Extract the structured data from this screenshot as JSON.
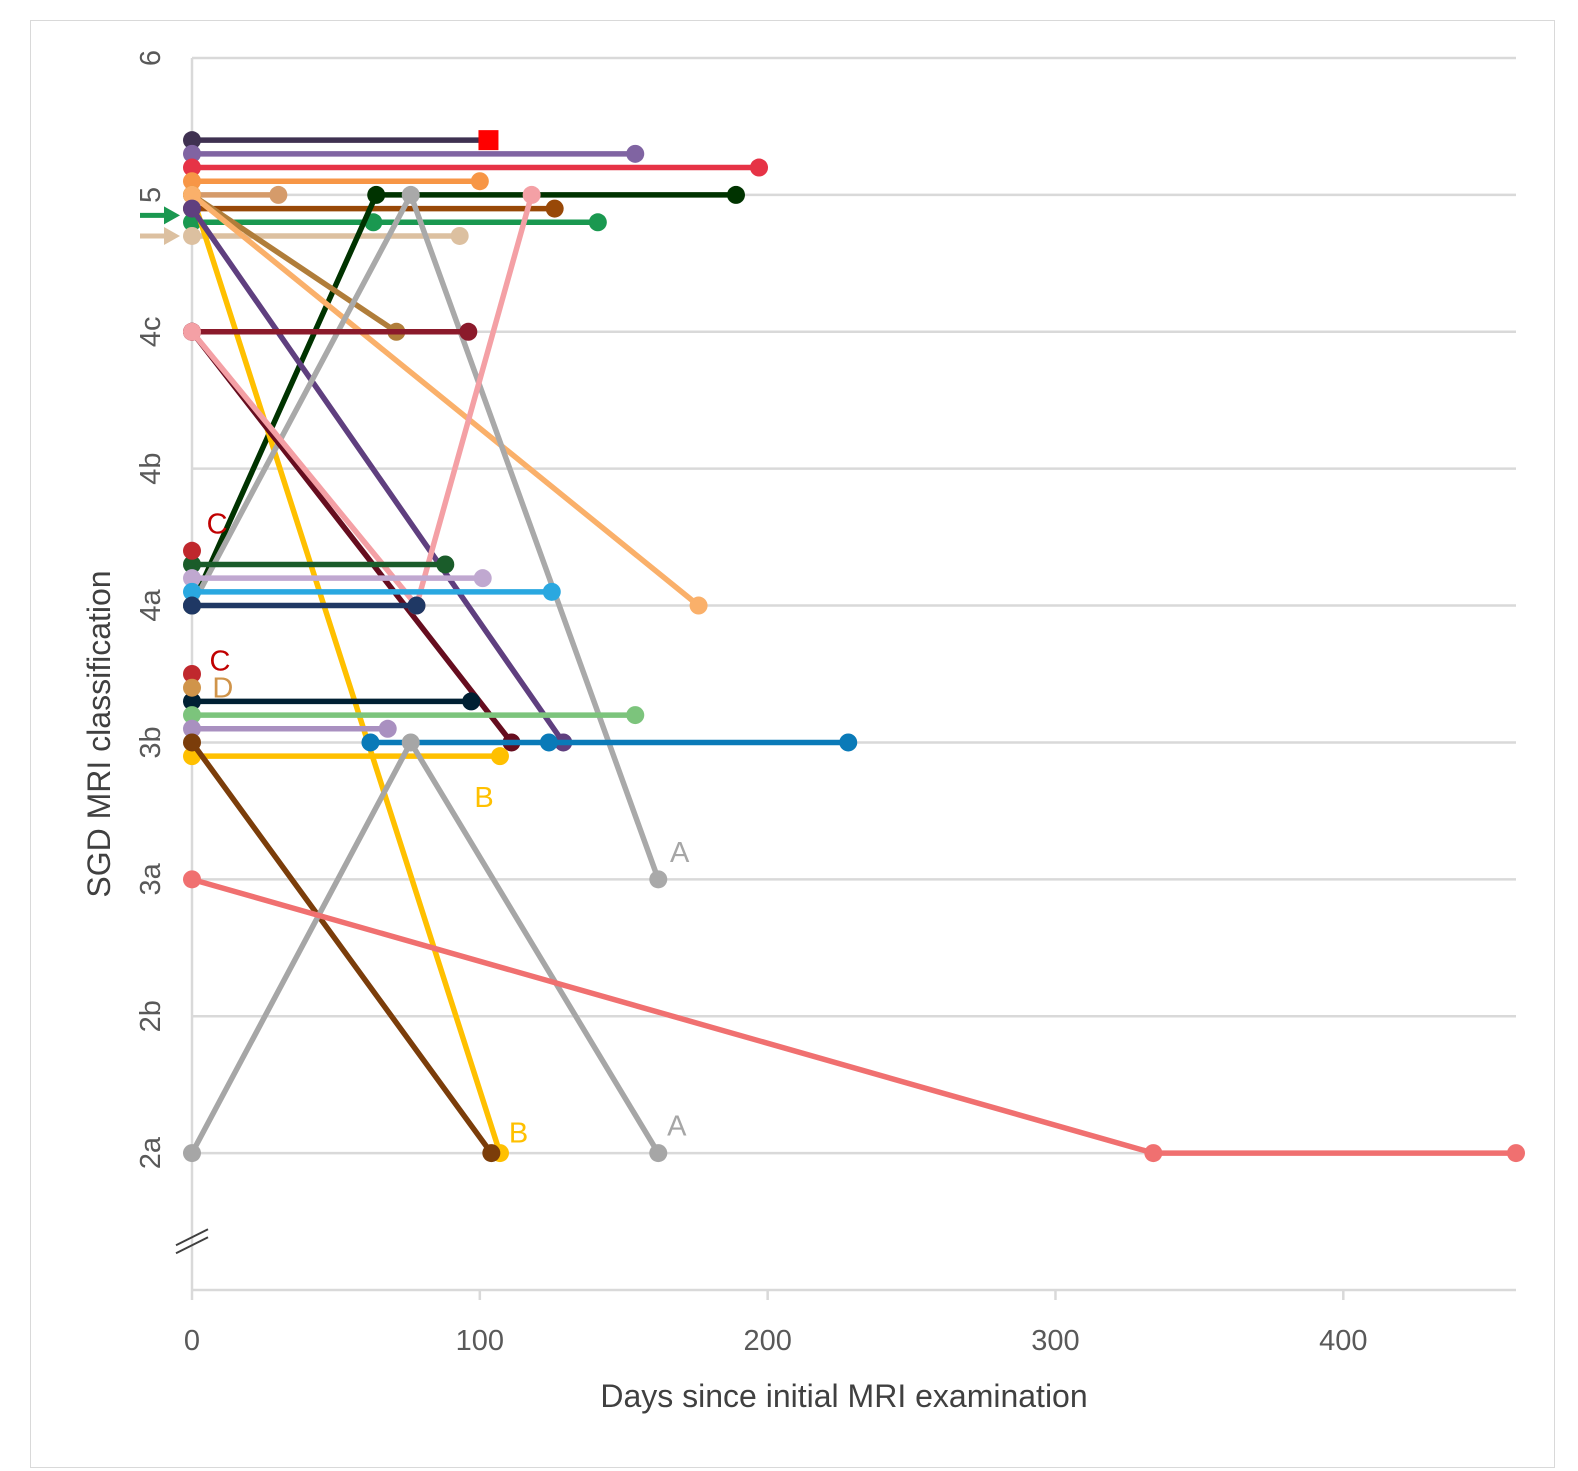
{
  "chart_data": {
    "type": "line",
    "xlabel": "Days since initial MRI examination",
    "ylabel": "SGD MRI classification",
    "x_ticks": [
      0,
      100,
      200,
      300,
      400
    ],
    "xlim": [
      0,
      460
    ],
    "y_levels": [
      "2a",
      "2b",
      "3a",
      "3b",
      "4a",
      "4b",
      "4c",
      "5",
      "6"
    ],
    "ylim": [
      -1,
      8
    ],
    "y_axis_break": true,
    "grid": "horizontal",
    "series": [
      {
        "color": "#3f3151",
        "points": [
          [
            0,
            7.4
          ],
          [
            103,
            7.4
          ]
        ],
        "end_marker": "square",
        "end_color": "#ff0000"
      },
      {
        "color": "#8064a2",
        "points": [
          [
            0,
            7.3
          ],
          [
            154,
            7.3
          ]
        ]
      },
      {
        "color": "#e63346",
        "points": [
          [
            0,
            7.2
          ],
          [
            197,
            7.2
          ]
        ]
      },
      {
        "color": "#f79646",
        "points": [
          [
            0,
            7.1
          ],
          [
            100,
            7.1
          ]
        ]
      },
      {
        "color": "#d59b6a",
        "points": [
          [
            0,
            7.0
          ],
          [
            30,
            7.0
          ]
        ]
      },
      {
        "color": "#984807",
        "points": [
          [
            0,
            6.9
          ],
          [
            126,
            6.9
          ]
        ]
      },
      {
        "color": "#1a9850",
        "points": [
          [
            0,
            6.8
          ],
          [
            63,
            6.8
          ],
          [
            141,
            6.8
          ]
        ]
      },
      {
        "color": "#dcc0a0",
        "points": [
          [
            0,
            6.7
          ],
          [
            93,
            6.7
          ]
        ]
      },
      {
        "color": "#003300",
        "points": [
          [
            0,
            4.0
          ],
          [
            64,
            7.0
          ],
          [
            189,
            7.0
          ]
        ]
      },
      {
        "color": "#ffc000",
        "points": [
          [
            0,
            7.0
          ],
          [
            107,
            0
          ]
        ]
      },
      {
        "color": "#b07d3a",
        "points": [
          [
            0,
            7.0
          ],
          [
            71,
            6.0
          ]
        ]
      },
      {
        "color": "#fab06a",
        "points": [
          [
            0,
            7.0
          ],
          [
            176,
            4.0
          ]
        ]
      },
      {
        "color": "#5f3f7f",
        "points": [
          [
            0,
            6.9
          ],
          [
            129,
            3.0
          ]
        ]
      },
      {
        "color": "#a9a9a9",
        "points": [
          [
            0,
            4.0
          ],
          [
            76,
            7.0
          ],
          [
            162,
            2.0
          ]
        ]
      },
      {
        "color": "#8b1a2b",
        "points": [
          [
            0,
            6.0
          ],
          [
            96,
            6.0
          ]
        ]
      },
      {
        "color": "#660d1f",
        "points": [
          [
            0,
            6.0
          ],
          [
            111,
            3.0
          ]
        ]
      },
      {
        "color": "#f4a0a5",
        "points": [
          [
            0,
            6.0
          ],
          [
            78,
            4.0
          ],
          [
            118,
            7.0
          ]
        ]
      },
      {
        "color": "#1a5c2a",
        "points": [
          [
            0,
            4.3
          ],
          [
            88,
            4.3
          ]
        ]
      },
      {
        "color": "#c0a8d0",
        "points": [
          [
            0,
            4.2
          ],
          [
            101,
            4.2
          ]
        ]
      },
      {
        "color": "#2aa8e0",
        "points": [
          [
            0,
            4.1
          ],
          [
            125,
            4.1
          ]
        ]
      },
      {
        "color": "#1f3864",
        "points": [
          [
            0,
            4.0
          ],
          [
            78,
            4.0
          ]
        ]
      },
      {
        "color": "#002033",
        "points": [
          [
            0,
            3.3
          ],
          [
            97,
            3.3
          ]
        ]
      },
      {
        "color": "#7cc47c",
        "points": [
          [
            0,
            3.2
          ],
          [
            154,
            3.2
          ]
        ]
      },
      {
        "color": "#a990c0",
        "points": [
          [
            0,
            3.1
          ],
          [
            68,
            3.1
          ]
        ]
      },
      {
        "color": "#0a7ab8",
        "points": [
          [
            62,
            3.0
          ],
          [
            124,
            3.0
          ],
          [
            228,
            3.0
          ]
        ]
      },
      {
        "color": "#ffc000",
        "points": [
          [
            0,
            2.9
          ],
          [
            107,
            2.9
          ]
        ]
      },
      {
        "color": "#7b3d0a",
        "points": [
          [
            0,
            3.0
          ],
          [
            104,
            0
          ]
        ]
      },
      {
        "color": "#a6a6a6",
        "points": [
          [
            0,
            0
          ],
          [
            76,
            3.0
          ],
          [
            162,
            0
          ]
        ]
      },
      {
        "color": "#f07070",
        "points": [
          [
            0,
            2.0
          ],
          [
            334,
            0
          ],
          [
            460,
            0
          ]
        ]
      }
    ],
    "single_points": [
      {
        "color": "#c0282d",
        "x": 0,
        "y": 4.4
      },
      {
        "color": "#c0282d",
        "x": 0,
        "y": 3.5
      },
      {
        "color": "#d0944a",
        "x": 0,
        "y": 3.4
      }
    ],
    "annotations": [
      {
        "text": "C",
        "color": "#c00000",
        "x": 3,
        "y": 4.6
      },
      {
        "text": "C",
        "color": "#c00000",
        "x": 4,
        "y": 3.6
      },
      {
        "text": "D",
        "color": "#d0944a",
        "x": 5,
        "y": 3.4
      },
      {
        "text": "B",
        "color": "#ffc000",
        "x": 96,
        "y": 2.6
      },
      {
        "text": "B",
        "color": "#ffc000",
        "x": 108,
        "y": 0.15
      },
      {
        "text": "A",
        "color": "#a6a6a6",
        "x": 164,
        "y": 2.2
      },
      {
        "text": "A",
        "color": "#a6a6a6",
        "x": 163,
        "y": 0.2
      }
    ],
    "arrows": [
      {
        "color": "#1a9850",
        "y": 6.85
      },
      {
        "color": "#dcc0a0",
        "y": 6.7
      }
    ]
  }
}
